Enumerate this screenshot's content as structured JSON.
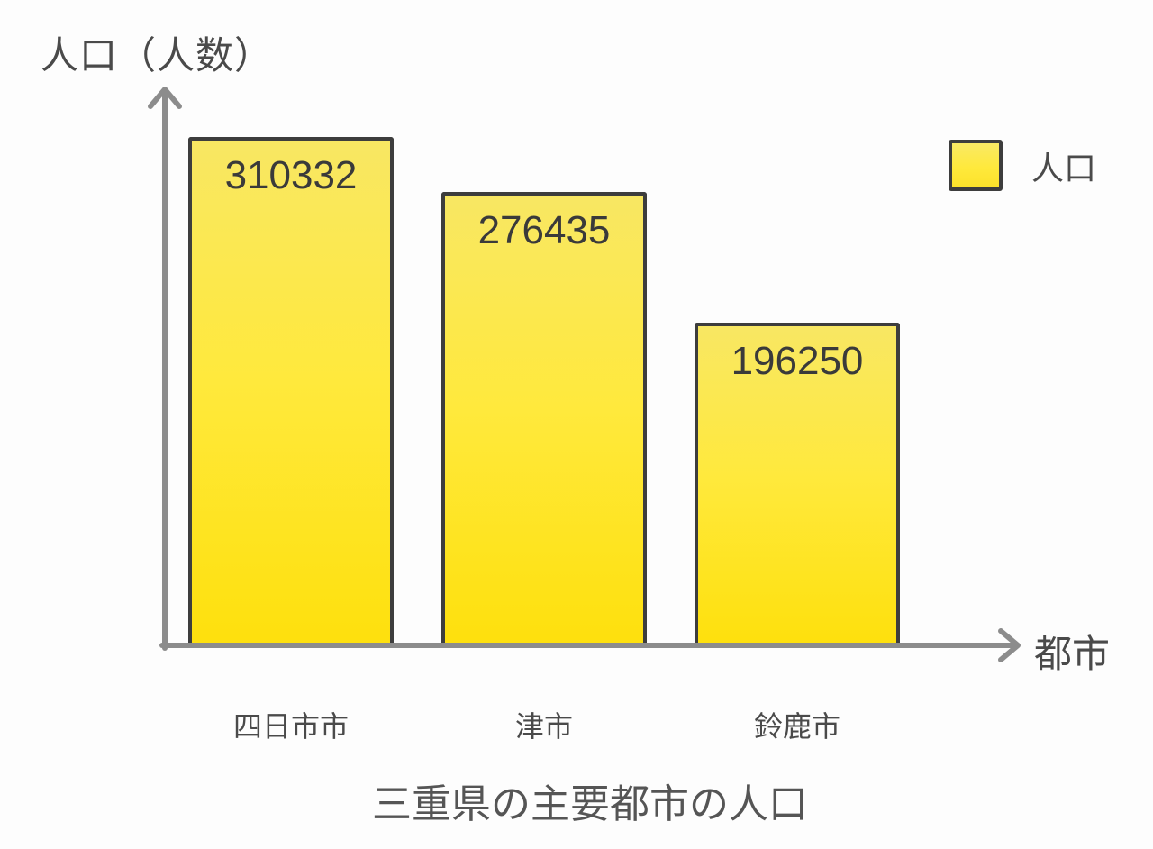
{
  "chart_data": {
    "type": "bar",
    "title": "三重県の主要都市の人口",
    "ylabel": "人口（人数）",
    "xlabel": "都市",
    "categories": [
      "四日市市",
      "津市",
      "鈴鹿市"
    ],
    "values": [
      310332,
      276435,
      196250
    ],
    "legend": [
      "人口"
    ],
    "legend_position": "top-right",
    "grid": false,
    "ylim": [
      0,
      310332
    ],
    "colors": {
      "bar_fill_top": "#f8e763",
      "bar_fill_mid": "#ffe93c",
      "bar_fill_bottom": "#fee00d",
      "bar_border": "#3d3d3d",
      "axis": "#8c8c8c",
      "label_text": "#4a4a4a",
      "value_text": "#3a3a3a",
      "background": "#fdfdfd"
    }
  }
}
